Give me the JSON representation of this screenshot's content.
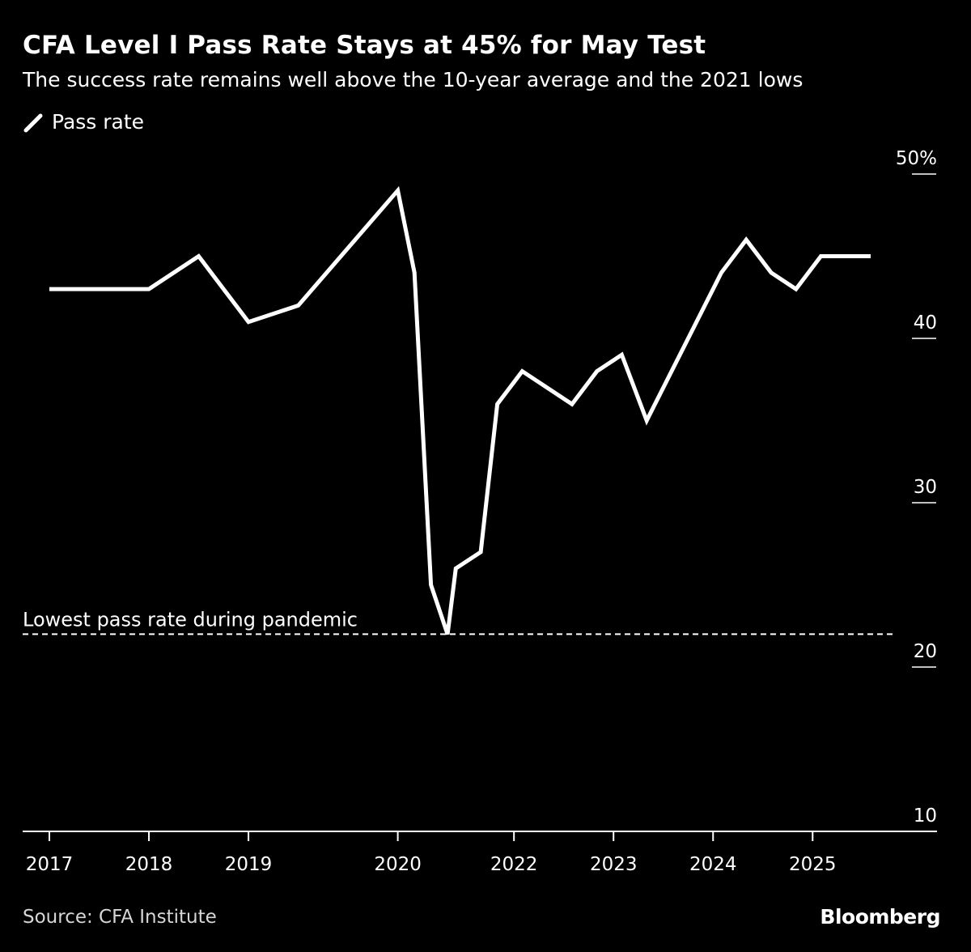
{
  "chart_data": {
    "type": "line",
    "title": "CFA Level I Pass Rate Stays at 45% for May Test",
    "subtitle": "The success rate remains well above the 10-year average and the 2021 lows",
    "series": [
      {
        "name": "Pass rate",
        "color": "#ffffff",
        "x": [
          2017.0,
          2018.0,
          2018.5,
          2019.0,
          2019.5,
          2020.5,
          2020.667,
          2020.833,
          2021.0,
          2021.083,
          2021.333,
          2021.5,
          2021.75,
          2022.25,
          2022.5,
          2022.75,
          2023.0,
          2023.75,
          2024.0,
          2024.25,
          2024.5,
          2024.75,
          2025.0,
          2025.25
        ],
        "y": [
          43,
          43,
          45,
          41,
          42,
          49,
          44,
          25,
          22,
          26,
          27,
          36,
          38,
          36,
          38,
          39,
          35,
          44,
          46,
          44,
          43,
          45,
          45,
          45
        ]
      }
    ],
    "reference_line": {
      "value": 22,
      "label": "Lowest pass rate during pandemic",
      "style": "dashed"
    },
    "x_ticks": [
      {
        "value": 2017.0,
        "label": "2017"
      },
      {
        "value": 2018.0,
        "label": "2018"
      },
      {
        "value": 2019.0,
        "label": "2019"
      },
      {
        "value": 2020.5,
        "label": "2020"
      },
      {
        "value": 2021.667,
        "label": "2022"
      },
      {
        "value": 2022.667,
        "label": "2023"
      },
      {
        "value": 2023.667,
        "label": "2024"
      },
      {
        "value": 2024.667,
        "label": "2025"
      }
    ],
    "y_ticks": [
      {
        "value": 10,
        "label": "10"
      },
      {
        "value": 20,
        "label": "20"
      },
      {
        "value": 30,
        "label": "30"
      },
      {
        "value": 40,
        "label": "40"
      },
      {
        "value": 50,
        "label": "50%"
      }
    ],
    "ylim": [
      10,
      50
    ],
    "xlim": [
      2016.75,
      2025.75
    ],
    "y_axis_side": "right",
    "grid": false,
    "legend_position": "top-left"
  },
  "footer": {
    "source": "Source: CFA Institute",
    "brand": "Bloomberg"
  }
}
